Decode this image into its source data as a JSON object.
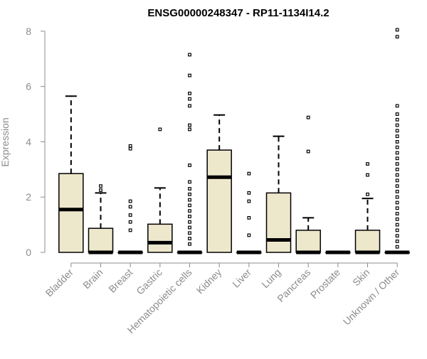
{
  "chart_data": {
    "type": "boxplot",
    "title": "ENSG00000248347 - RP11-1134I14.2",
    "ylabel": "Expression",
    "ylim": [
      0,
      8.1
    ],
    "yticks": [
      "0",
      "2",
      "4",
      "6",
      "8"
    ],
    "categories": [
      "Bladder",
      "Brain",
      "Breast",
      "Gastric",
      "Hematopoietic cells",
      "Kidney",
      "Liver",
      "Lung",
      "Pancreas",
      "Prostate",
      "Skin",
      "Unknown / Other"
    ],
    "box_color": "#ede7cc",
    "series": [
      {
        "category": "Bladder",
        "q1": 0,
        "median": 1.55,
        "q3": 2.85,
        "whisker_low": 0,
        "whisker_high": 5.65,
        "outliers": []
      },
      {
        "category": "Brain",
        "q1": 0,
        "median": 0,
        "q3": 0.87,
        "whisker_low": 0,
        "whisker_high": 2.15,
        "outliers": [
          2.25,
          2.4
        ]
      },
      {
        "category": "Breast",
        "q1": 0,
        "median": 0,
        "q3": 0,
        "whisker_low": 0,
        "whisker_high": 0,
        "outliers": [
          0.8,
          1.1,
          1.35,
          1.65,
          1.85,
          3.75,
          3.85
        ]
      },
      {
        "category": "Gastric",
        "q1": 0,
        "median": 0.35,
        "q3": 1.02,
        "whisker_low": 0,
        "whisker_high": 2.33,
        "outliers": [
          4.45
        ]
      },
      {
        "category": "Hematopoietic cells",
        "q1": 0,
        "median": 0,
        "q3": 0,
        "whisker_low": 0,
        "whisker_high": 0,
        "outliers": [
          0.3,
          0.5,
          0.7,
          0.9,
          1.1,
          1.3,
          1.5,
          1.7,
          1.9,
          2.1,
          2.3,
          2.55,
          3.15,
          4.45,
          4.6,
          5.3,
          5.55,
          5.75,
          6.4,
          7.15
        ]
      },
      {
        "category": "Kidney",
        "q1": 0,
        "median": 2.72,
        "q3": 3.7,
        "whisker_low": 0,
        "whisker_high": 4.97,
        "outliers": []
      },
      {
        "category": "Liver",
        "q1": 0,
        "median": 0,
        "q3": 0,
        "whisker_low": 0,
        "whisker_high": 0,
        "outliers": [
          0.62,
          1.25,
          1.85,
          2.15,
          2.85
        ]
      },
      {
        "category": "Lung",
        "q1": 0,
        "median": 0.45,
        "q3": 2.15,
        "whisker_low": 0,
        "whisker_high": 4.2,
        "outliers": []
      },
      {
        "category": "Pancreas",
        "q1": 0,
        "median": 0,
        "q3": 0.8,
        "whisker_low": 0,
        "whisker_high": 1.25,
        "outliers": [
          3.65,
          4.88
        ]
      },
      {
        "category": "Prostate",
        "q1": 0,
        "median": 0,
        "q3": 0,
        "whisker_low": 0,
        "whisker_high": 0,
        "outliers": []
      },
      {
        "category": "Skin",
        "q1": 0,
        "median": 0,
        "q3": 0.8,
        "whisker_low": 0,
        "whisker_high": 1.95,
        "outliers": [
          2.1,
          2.8,
          3.2
        ]
      },
      {
        "category": "Unknown / Other",
        "q1": 0,
        "median": 0,
        "q3": 0,
        "whisker_low": 0,
        "whisker_high": 0,
        "outliers": [
          0.2,
          0.4,
          0.6,
          0.8,
          1.0,
          1.2,
          1.4,
          1.6,
          1.8,
          2.0,
          2.2,
          2.4,
          2.6,
          2.8,
          3.0,
          3.2,
          3.4,
          3.6,
          3.8,
          4.0,
          4.2,
          4.4,
          4.6,
          4.8,
          5.0,
          5.3,
          7.8,
          8.05
        ]
      }
    ]
  }
}
